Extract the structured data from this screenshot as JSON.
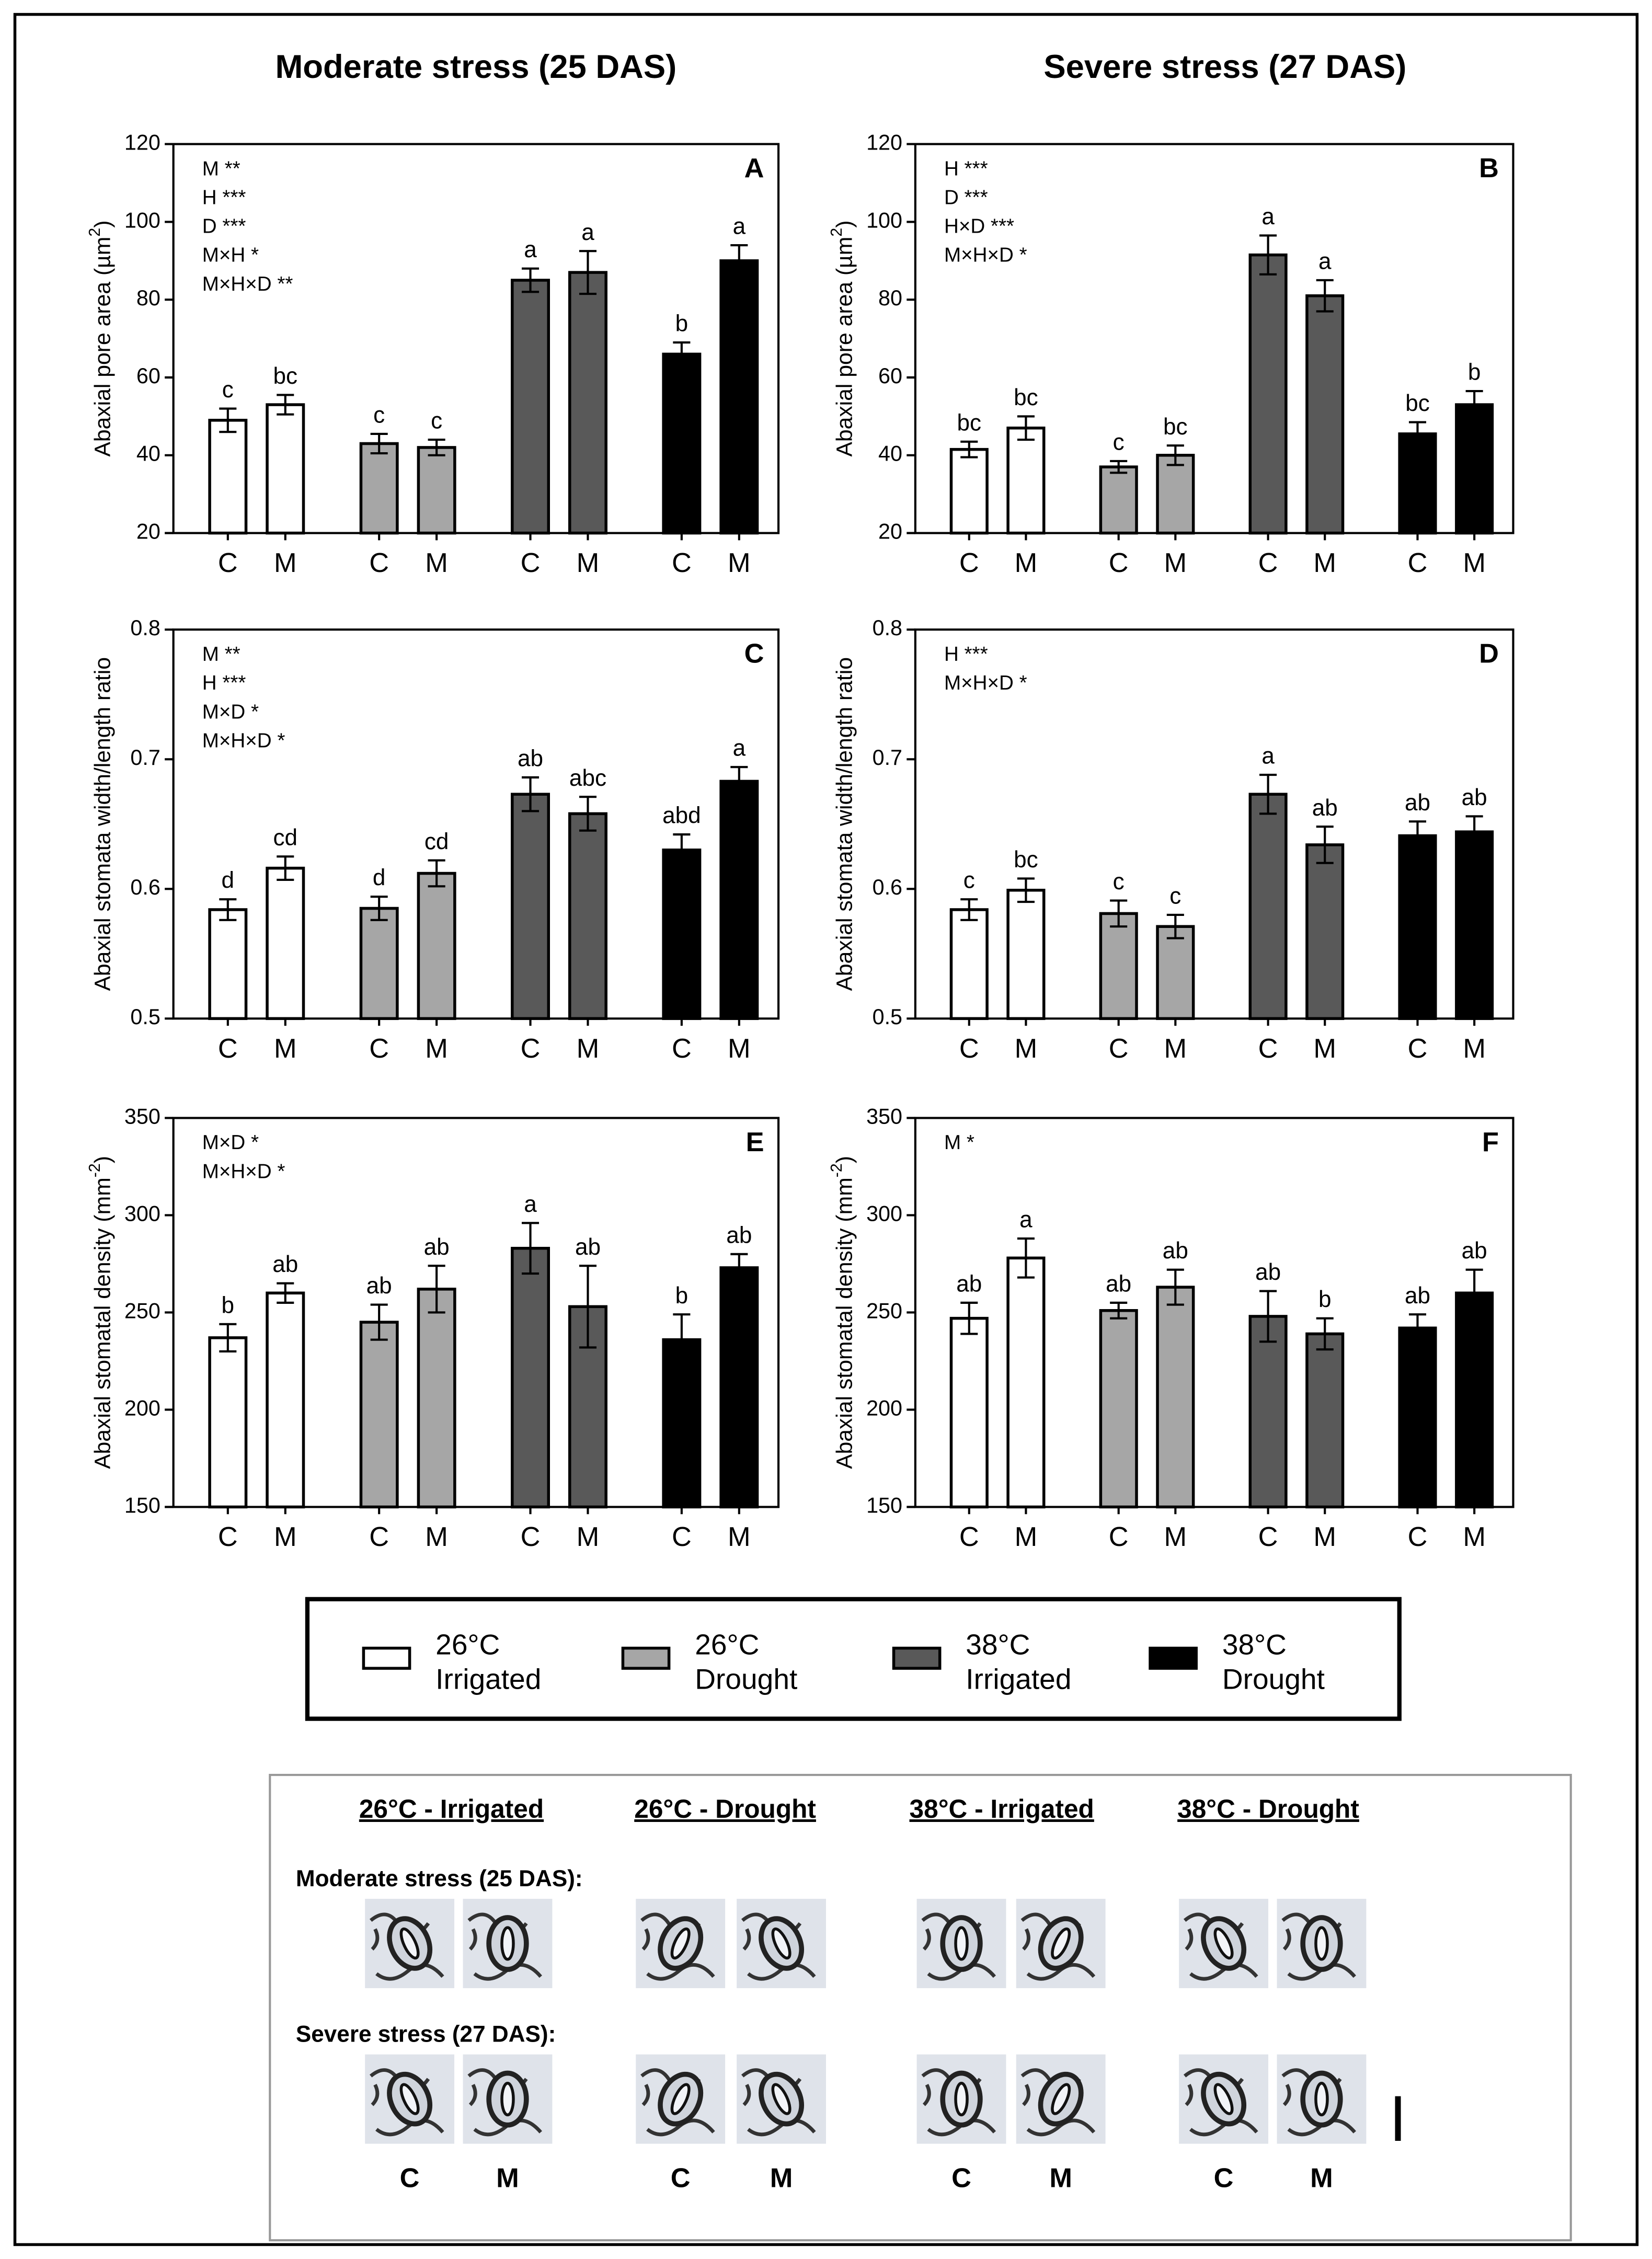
{
  "column_titles": [
    "Moderate stress (25 DAS)",
    "Severe stress (27 DAS)"
  ],
  "chart_data": [
    {
      "type": "bar",
      "panel": "A",
      "ylabel": {
        "text": "Abaxial pore area (µm",
        "sup": "2",
        "after": ")"
      },
      "annotations": [
        "M **",
        "H ***",
        "D ***",
        "M×H *",
        "M×H×D **"
      ],
      "categories": [
        "C",
        "M",
        "C",
        "M",
        "C",
        "M",
        "C",
        "M"
      ],
      "values": [
        49,
        53,
        43,
        42,
        85,
        87,
        66,
        90
      ],
      "errors": [
        3,
        2.5,
        2.5,
        2,
        3,
        5.5,
        3,
        4
      ],
      "letters": [
        "c",
        "bc",
        "c",
        "c",
        "a",
        "a",
        "b",
        "a"
      ],
      "ylim": [
        20,
        120
      ],
      "yticks": [
        20,
        40,
        60,
        80,
        100,
        120
      ]
    },
    {
      "type": "bar",
      "panel": "B",
      "ylabel": {
        "text": "Abaxial pore area (µm",
        "sup": "2",
        "after": ")"
      },
      "annotations": [
        "H ***",
        "D ***",
        "H×D ***",
        "M×H×D *"
      ],
      "categories": [
        "C",
        "M",
        "C",
        "M",
        "C",
        "M",
        "C",
        "M"
      ],
      "values": [
        41.5,
        47,
        37,
        40,
        91.5,
        81,
        45.5,
        53
      ],
      "errors": [
        2,
        3,
        1.5,
        2.5,
        5,
        4,
        3,
        3.5
      ],
      "letters": [
        "bc",
        "bc",
        "c",
        "bc",
        "a",
        "a",
        "bc",
        "b"
      ],
      "ylim": [
        20,
        120
      ],
      "yticks": [
        20,
        40,
        60,
        80,
        100,
        120
      ]
    },
    {
      "type": "bar",
      "panel": "C",
      "ylabel": {
        "text": "Abaxial stomata width/length ratio",
        "sup": "",
        "after": ""
      },
      "annotations": [
        "M **",
        "H ***",
        "M×D *",
        "M×H×D *"
      ],
      "categories": [
        "C",
        "M",
        "C",
        "M",
        "C",
        "M",
        "C",
        "M"
      ],
      "values": [
        0.584,
        0.616,
        0.585,
        0.612,
        0.673,
        0.658,
        0.63,
        0.683
      ],
      "errors": [
        0.008,
        0.009,
        0.009,
        0.01,
        0.013,
        0.013,
        0.012,
        0.011
      ],
      "letters": [
        "d",
        "cd",
        "d",
        "cd",
        "ab",
        "abc",
        "abd",
        "a"
      ],
      "ylim": [
        0.5,
        0.8
      ],
      "yticks": [
        0.5,
        0.6,
        0.7,
        0.8
      ]
    },
    {
      "type": "bar",
      "panel": "D",
      "ylabel": {
        "text": "Abaxial stomata width/length ratio",
        "sup": "",
        "after": ""
      },
      "annotations": [
        "H ***",
        "M×H×D *"
      ],
      "categories": [
        "C",
        "M",
        "C",
        "M",
        "C",
        "M",
        "C",
        "M"
      ],
      "values": [
        0.584,
        0.599,
        0.581,
        0.571,
        0.673,
        0.634,
        0.641,
        0.644
      ],
      "errors": [
        0.008,
        0.009,
        0.01,
        0.009,
        0.015,
        0.014,
        0.011,
        0.012
      ],
      "letters": [
        "c",
        "bc",
        "c",
        "c",
        "a",
        "ab",
        "ab",
        "ab"
      ],
      "ylim": [
        0.5,
        0.8
      ],
      "yticks": [
        0.5,
        0.6,
        0.7,
        0.8
      ]
    },
    {
      "type": "bar",
      "panel": "E",
      "ylabel": {
        "text": "Abaxial stomatal density (mm",
        "sup": "-2",
        "after": ")"
      },
      "annotations": [
        "M×D *",
        "M×H×D *"
      ],
      "categories": [
        "C",
        "M",
        "C",
        "M",
        "C",
        "M",
        "C",
        "M"
      ],
      "values": [
        237,
        260,
        245,
        262,
        283,
        253,
        236,
        273
      ],
      "errors": [
        7,
        5,
        9,
        12,
        13,
        21,
        13,
        7
      ],
      "letters": [
        "b",
        "ab",
        "ab",
        "ab",
        "a",
        "ab",
        "b",
        "ab"
      ],
      "ylim": [
        150,
        350
      ],
      "yticks": [
        150,
        200,
        250,
        300,
        350
      ]
    },
    {
      "type": "bar",
      "panel": "F",
      "ylabel": {
        "text": "Abaxial stomatal density (mm",
        "sup": "-2",
        "after": ")"
      },
      "annotations": [
        "M *"
      ],
      "categories": [
        "C",
        "M",
        "C",
        "M",
        "C",
        "M",
        "C",
        "M"
      ],
      "values": [
        247,
        278,
        251,
        263,
        248,
        239,
        242,
        260
      ],
      "errors": [
        8,
        10,
        4,
        9,
        13,
        8,
        7,
        12
      ],
      "letters": [
        "ab",
        "a",
        "ab",
        "ab",
        "ab",
        "b",
        "ab",
        "ab"
      ],
      "ylim": [
        150,
        350
      ],
      "yticks": [
        150,
        200,
        250,
        300,
        350
      ]
    }
  ],
  "legend": [
    {
      "lines": [
        "26°C",
        "Irrigated"
      ],
      "color": "#ffffff"
    },
    {
      "lines": [
        "26°C",
        "Drought"
      ],
      "color": "#a6a6a6"
    },
    {
      "lines": [
        "38°C",
        "Irrigated"
      ],
      "color": "#595959"
    },
    {
      "lines": [
        "38°C",
        "Drought"
      ],
      "color": "#000000"
    }
  ],
  "micrographs": {
    "headers": [
      "26°C - Irrigated",
      "26°C - Drought",
      "38°C - Irrigated",
      "38°C - Drought"
    ],
    "rows": [
      "Moderate stress (25 DAS):",
      "Severe stress (27 DAS):"
    ],
    "columns": [
      "C",
      "M",
      "C",
      "M",
      "C",
      "M",
      "C",
      "M"
    ]
  }
}
